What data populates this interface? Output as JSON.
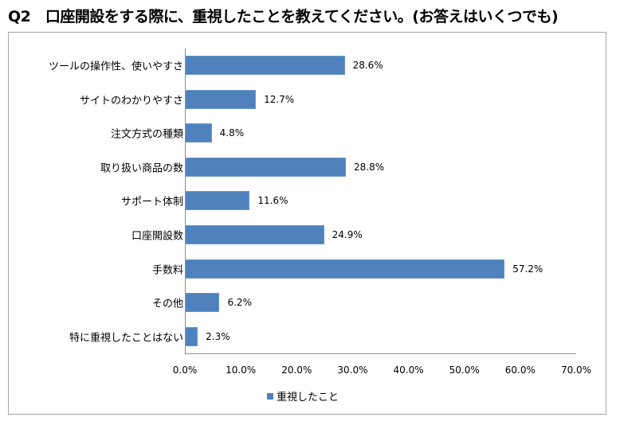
{
  "header": {
    "title": "Q2　口座開設をする際に、重視したことを教えてください。(お答えはいくつでも)"
  },
  "chart_data": {
    "type": "bar",
    "orientation": "horizontal",
    "title": "Q2　口座開設をする際に、重視したことを教えてください。(お答えはいくつでも)",
    "categories": [
      "ツールの操作性、使いやすさ",
      "サイトのわかりやすさ",
      "注文方式の種類",
      "取り扱い商品の数",
      "サポート体制",
      "口座開設数",
      "手数料",
      "その他",
      "特に重視したことはない"
    ],
    "series": [
      {
        "name": "重視したこと",
        "color": "#4f81bd",
        "values": [
          28.6,
          12.7,
          4.8,
          28.8,
          11.6,
          24.9,
          57.2,
          6.2,
          2.3
        ],
        "labels": [
          "28.6%",
          "12.7%",
          "4.8%",
          "28.8%",
          "11.6%",
          "24.9%",
          "57.2%",
          "6.2%",
          "2.3%"
        ]
      }
    ],
    "xlabel": "",
    "ylabel": "",
    "xlim": [
      0,
      70
    ],
    "x_ticks": [
      "0.0%",
      "10.0%",
      "20.0%",
      "30.0%",
      "40.0%",
      "50.0%",
      "60.0%",
      "70.0%"
    ],
    "grid": false,
    "legend_position": "bottom"
  },
  "legend": {
    "label": "重視したこと"
  }
}
